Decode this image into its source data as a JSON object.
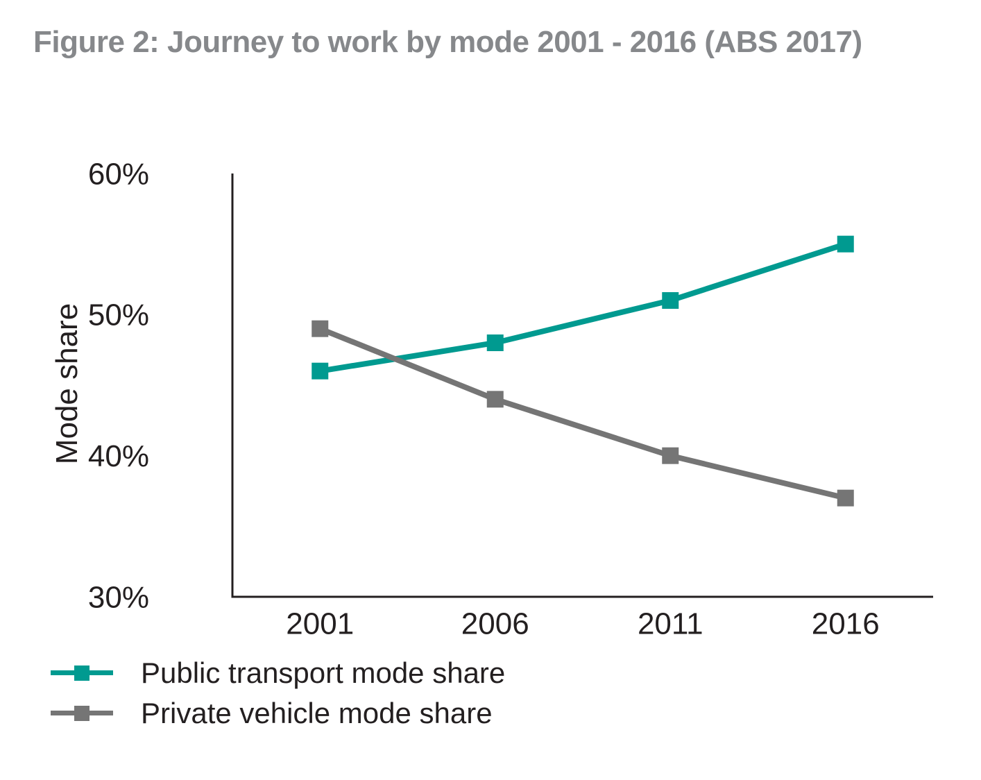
{
  "figure": {
    "title": "Figure 2: Journey to work by mode 2001 - 2016 (ABS 2017)"
  },
  "chart_data": {
    "type": "line",
    "title": "Figure 2: Journey to work by mode 2001 - 2016 (ABS 2017)",
    "categories": [
      "2001",
      "2006",
      "2011",
      "2016"
    ],
    "series": [
      {
        "name": "Public transport mode share",
        "values": [
          46,
          48,
          51,
          55
        ],
        "color": "#009A90",
        "marker": "square"
      },
      {
        "name": "Private vehicle mode share",
        "values": [
          49,
          44,
          40,
          37
        ],
        "color": "#757575",
        "marker": "square"
      }
    ],
    "xlabel": "",
    "ylabel": "Mode share",
    "ylim": [
      30,
      60
    ],
    "y_ticks": [
      {
        "value": 30,
        "label": "30%"
      },
      {
        "value": 40,
        "label": "40%"
      },
      {
        "value": 50,
        "label": "50%"
      },
      {
        "value": 60,
        "label": "60%"
      }
    ],
    "grid": false,
    "legend_position": "bottom-left"
  },
  "colors": {
    "title_text": "#86888B",
    "axis_text": "#231F20",
    "axis_line": "#231F20",
    "background": "#FFFFFF",
    "public_transport": "#009A90",
    "private_vehicle": "#757575"
  }
}
